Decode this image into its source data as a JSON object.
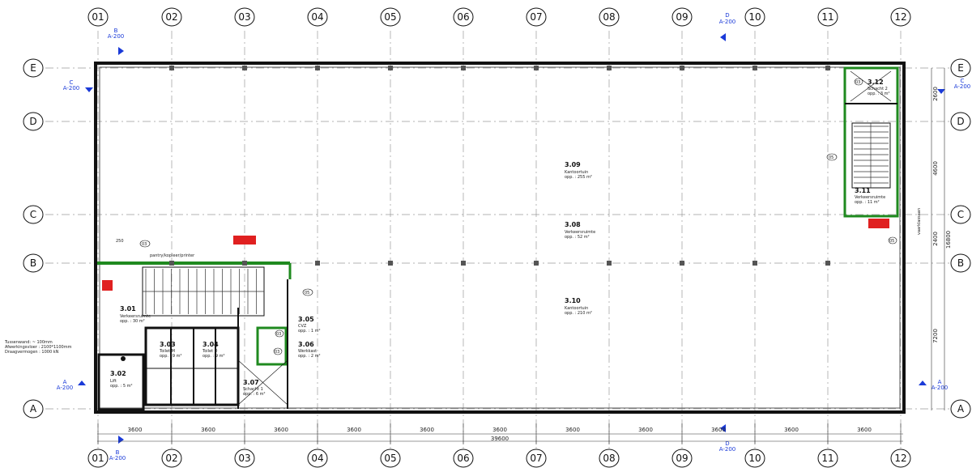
{
  "grid": {
    "columns": [
      "01",
      "02",
      "03",
      "04",
      "05",
      "06",
      "07",
      "08",
      "09",
      "10",
      "11",
      "12"
    ],
    "rows": [
      "E",
      "D",
      "C",
      "B",
      "A"
    ]
  },
  "sections": {
    "B_top": {
      "letter": "B",
      "ref": "A-200"
    },
    "D_top": {
      "letter": "D",
      "ref": "A-200"
    },
    "C_left": {
      "letter": "C",
      "ref": "A-200"
    },
    "C_right": {
      "letter": "C",
      "ref": "A-200"
    },
    "A_left": {
      "letter": "A",
      "ref": "A-200"
    },
    "A_right": {
      "letter": "A",
      "ref": "A-200"
    },
    "B_bottom": {
      "letter": "B",
      "ref": "A-200"
    },
    "D_bottom": {
      "letter": "D",
      "ref": "A-200"
    }
  },
  "rooms": {
    "r309": {
      "num": "3.09",
      "name": "Kantoortuin",
      "area": "opp. : 255 m²"
    },
    "r308": {
      "num": "3.08",
      "name": "Verkeersruimte",
      "area": "opp. : 52 m²"
    },
    "r310": {
      "num": "3.10",
      "name": "Kantoortuin",
      "area": "opp. : 210 m²"
    },
    "r301": {
      "num": "3.01",
      "name": "Verkeersruimte",
      "area": "opp. : 30 m²"
    },
    "r302": {
      "num": "3.02",
      "name": "Lift",
      "area": "opp. : 5 m²"
    },
    "r303": {
      "num": "3.03",
      "name": "Toilet M",
      "area": "opp. : 9 m²"
    },
    "r304": {
      "num": "3.04",
      "name": "Toilet D",
      "area": "opp. : 9 m²"
    },
    "r305": {
      "num": "3.05",
      "name": "CVZ",
      "area": "opp. : 1 m²"
    },
    "r306": {
      "num": "3.06",
      "name": "Werkkast",
      "area": "opp. : 2 m²"
    },
    "r307": {
      "num": "3.07",
      "name": "Schacht 1",
      "area": "opp. : 6 m²"
    },
    "r311": {
      "num": "3.11",
      "name": "Verkeersruimte",
      "area": "opp. : 11 m²"
    },
    "r312": {
      "num": "3.12",
      "name": "Schacht 2",
      "area": "opp. : 3 m²"
    }
  },
  "notes": {
    "stair_label": "pantry/kopieer/printer",
    "vertical_label": "vaarklassaan",
    "legend_lines": [
      "Tussenwand: ~ 100mm",
      "Afwerkingsvloer : 2100*1100mm",
      "Draagvermogen : 1000 kN"
    ]
  },
  "tags": {
    "t1": "250",
    "t2": "03",
    "t3": "05",
    "t4": "03",
    "t5": "05",
    "t6": "03",
    "t7": "05",
    "t8": "03"
  },
  "dimensions": {
    "bays": [
      "3600",
      "3600",
      "3600",
      "3600",
      "3600",
      "3600",
      "3600",
      "3600",
      "3600",
      "3600",
      "3600"
    ],
    "total": "39600",
    "right": [
      "2600",
      "4600",
      "2400",
      "7200"
    ],
    "right_total": "16800"
  },
  "colors": {
    "wall": "#111111",
    "green": "#1f8a1f",
    "blue": "#1a3ad8",
    "red": "#e02020",
    "grid": "#9a9a9a"
  }
}
